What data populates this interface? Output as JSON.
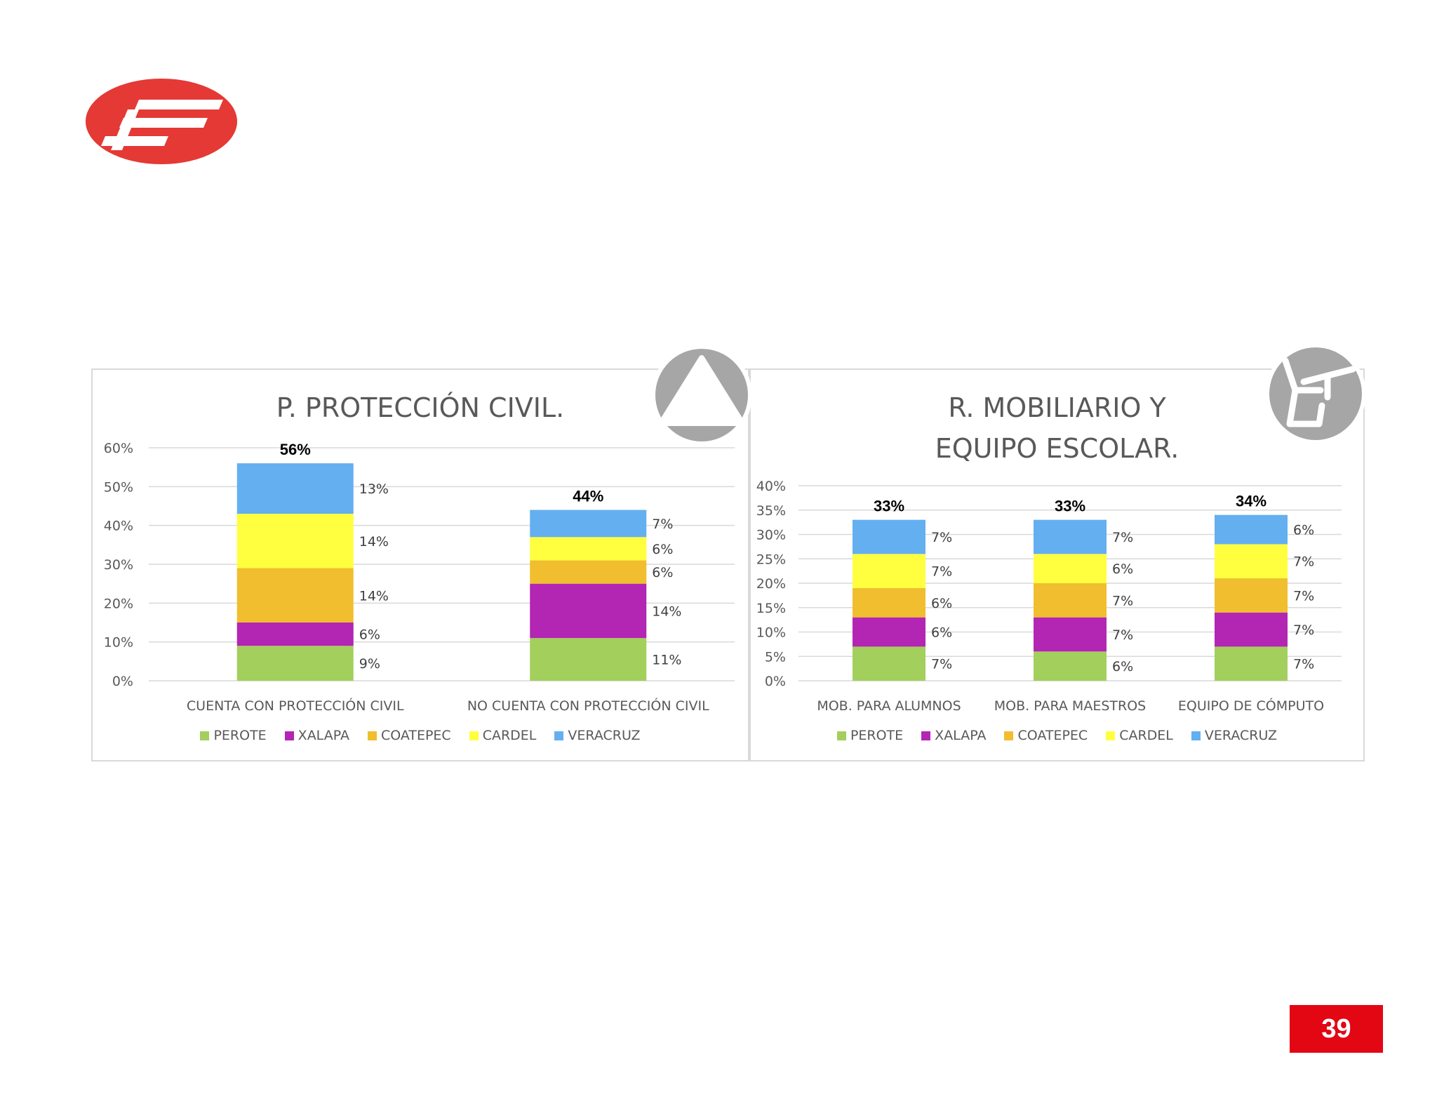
{
  "page": {
    "number": "39"
  },
  "logo": {
    "name": "red-oval-logo",
    "color": "#e53935"
  },
  "colors": {
    "PEROTE": "#a3cf5d",
    "XALAPA": "#b325b3",
    "COATEPEC": "#f0be2e",
    "CARDEL": "#ffff3f",
    "VERACRUZ": "#64aff0"
  },
  "chart_data": [
    {
      "type": "bar",
      "stacked": true,
      "title": "P. PROTECCIÓN CIVIL.",
      "categories": [
        "CUENTA CON PROTECCIÓN CIVIL",
        "NO CUENTA CON PROTECCIÓN CIVIL"
      ],
      "series": [
        {
          "name": "PEROTE",
          "values": [
            9,
            11
          ],
          "labels": [
            "9%",
            "11%"
          ]
        },
        {
          "name": "XALAPA",
          "values": [
            6,
            14
          ],
          "labels": [
            "6%",
            "14%"
          ]
        },
        {
          "name": "COATEPEC",
          "values": [
            14,
            6
          ],
          "labels": [
            "14%",
            "6%"
          ]
        },
        {
          "name": "CARDEL",
          "values": [
            14,
            6
          ],
          "labels": [
            "14%",
            "6%"
          ]
        },
        {
          "name": "VERACRUZ",
          "values": [
            13,
            7
          ],
          "labels": [
            "13%",
            "7%"
          ]
        }
      ],
      "totals": [
        "56%",
        "44%"
      ],
      "ylim": [
        0,
        60
      ],
      "yticks": [
        "0%",
        "10%",
        "20%",
        "30%",
        "40%",
        "50%",
        "60%"
      ],
      "grid": true,
      "legend": "bottom",
      "icon": "warning-triangle-icon"
    },
    {
      "type": "bar",
      "stacked": true,
      "title": "R. MOBILIARIO Y EQUIPO ESCOLAR.",
      "title_lines": [
        "R. MOBILIARIO Y",
        "EQUIPO ESCOLAR."
      ],
      "categories": [
        "MOB. PARA ALUMNOS",
        "MOB. PARA MAESTROS",
        "EQUIPO DE CÓMPUTO"
      ],
      "series": [
        {
          "name": "PEROTE",
          "values": [
            7,
            6,
            7
          ],
          "labels": [
            "7%",
            "6%",
            "7%"
          ]
        },
        {
          "name": "XALAPA",
          "values": [
            6,
            7,
            7
          ],
          "labels": [
            "6%",
            "7%",
            "7%"
          ]
        },
        {
          "name": "COATEPEC",
          "values": [
            6,
            7,
            7
          ],
          "labels": [
            "6%",
            "7%",
            "7%"
          ]
        },
        {
          "name": "CARDEL",
          "values": [
            7,
            6,
            7
          ],
          "labels": [
            "7%",
            "6%",
            "7%"
          ]
        },
        {
          "name": "VERACRUZ",
          "values": [
            7,
            7,
            6
          ],
          "labels": [
            "7%",
            "7%",
            "6%"
          ]
        }
      ],
      "totals": [
        "33%",
        "33%",
        "34%"
      ],
      "ylim": [
        0,
        40
      ],
      "yticks": [
        "0%",
        "5%",
        "10%",
        "15%",
        "20%",
        "25%",
        "30%",
        "35%",
        "40%"
      ],
      "grid": true,
      "legend": "bottom",
      "icon": "school-desk-chair-icon"
    }
  ]
}
